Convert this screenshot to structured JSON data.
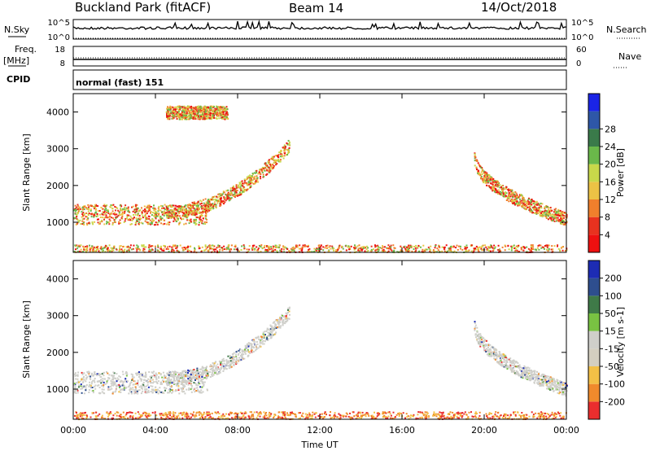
{
  "header": {
    "radar": "Buckland Park (fitACF)",
    "beam": "Beam 14",
    "date": "14/Oct/2018"
  },
  "top_panels": {
    "nsky_label": "N.Sky",
    "nsky_top": "10^5",
    "nsky_bottom": "10^0",
    "nsearch_label": "N.Search",
    "nsearch_top": "10^5",
    "nsearch_bottom": "10^0",
    "freq_label": "Freq.",
    "freq_unit": "[MHz]",
    "freq_top": "18",
    "freq_bottom": "8",
    "nave_label": "Nave",
    "nave_top": "60",
    "nave_bottom": "0",
    "cpid_label": "CPID",
    "cpid_text": "normal (fast) 151"
  },
  "chart_data": [
    {
      "type": "heatmap",
      "title": "",
      "xlabel": "",
      "ylabel": "Slant Range [km]",
      "xlim": [
        0,
        24
      ],
      "ylim": [
        180,
        4500
      ],
      "yticks": [
        1000,
        2000,
        3000,
        4000
      ],
      "colorbar": {
        "label": "Power [dB]",
        "ticks": [
          "4",
          "8",
          "12",
          "16",
          "20",
          "24",
          "28"
        ],
        "colors": [
          "#1a24e6",
          "#2e57a8",
          "#3a7a4a",
          "#6ab84a",
          "#c8d84a",
          "#ecc245",
          "#f07f2c",
          "#e8321f",
          "#ee1010"
        ]
      },
      "features": [
        {
          "name": "near-range scatter",
          "t_start": 0,
          "t_end": 24,
          "range_min": 200,
          "range_max": 400
        },
        {
          "name": "morning band",
          "t_start": 0,
          "t_end": 6.5,
          "range_min": 950,
          "range_max": 1500
        },
        {
          "name": "rising arc",
          "t_start": 4.5,
          "t_end": 10.5,
          "range_min": 1300,
          "range_max": 3100
        },
        {
          "name": "evening arc",
          "t_start": 19.5,
          "t_end": 24,
          "range_min": 1100,
          "range_max": 2800
        },
        {
          "name": "upper arc",
          "t_start": 4.5,
          "t_end": 7.5,
          "range_min": 3500,
          "range_max": 4500
        }
      ]
    },
    {
      "type": "heatmap",
      "title": "",
      "xlabel": "Time UT",
      "ylabel": "Slant Range [km]",
      "xlim": [
        0,
        24
      ],
      "ylim": [
        180,
        4500
      ],
      "xticks": [
        "00:00",
        "04:00",
        "08:00",
        "12:00",
        "16:00",
        "20:00",
        "00:00"
      ],
      "yticks": [
        1000,
        2000,
        3000,
        4000
      ],
      "colorbar": {
        "label": "Velocity [m s-1]",
        "ticks": [
          "200",
          "100",
          "50",
          "15",
          "-15",
          "-50",
          "-100",
          "-200"
        ],
        "colors": [
          "#1d2cb4",
          "#2e4e8e",
          "#3f7a48",
          "#79c242",
          "#cfcfca",
          "#d4cfc0",
          "#f3c046",
          "#f08a2c",
          "#ea2e2e"
        ]
      },
      "features": [
        {
          "name": "near-range scatter",
          "t_start": 0,
          "t_end": 24,
          "range_min": 200,
          "range_max": 400
        },
        {
          "name": "ground scatter band",
          "t_start": 0,
          "t_end": 6.5,
          "range_min": 900,
          "range_max": 1500
        },
        {
          "name": "rising arc",
          "t_start": 4.5,
          "t_end": 10.5,
          "range_min": 1300,
          "range_max": 3100
        },
        {
          "name": "evening arc",
          "t_start": 19.5,
          "t_end": 24,
          "range_min": 1000,
          "range_max": 2800
        }
      ]
    }
  ]
}
